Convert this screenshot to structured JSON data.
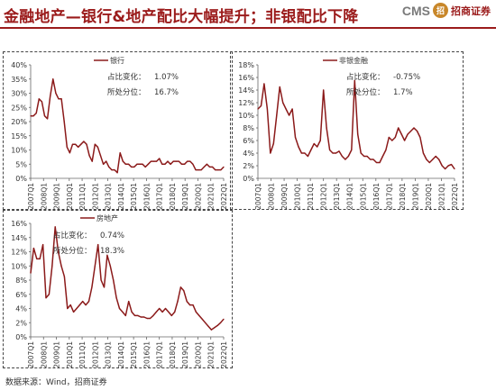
{
  "header": {
    "title": "金融地产—银行&地产配比大幅提升；非银配比下降",
    "logo_text": "CMS",
    "logo_mark": "招",
    "logo_name": "招商证券"
  },
  "footer": {
    "source": "数据来源：Wind，招商证券"
  },
  "colors": {
    "series": "#8b1a1a",
    "title": "#9b1b1b"
  },
  "chart_data": [
    {
      "type": "line",
      "title": "",
      "ylabel": "",
      "xlabel": "",
      "ylim": [
        0,
        40
      ],
      "yticks": [
        0,
        5,
        10,
        15,
        20,
        25,
        30,
        35,
        40
      ],
      "ytick_labels": [
        "0%",
        "5%",
        "10%",
        "15%",
        "20%",
        "25%",
        "30%",
        "35%",
        "40%"
      ],
      "x_tick_labels": [
        "2007Q1",
        "2008Q1",
        "2009Q1",
        "2010Q1",
        "2011Q1",
        "2012Q1",
        "2013Q1",
        "2014Q1",
        "2015Q1",
        "2016Q1",
        "2017Q1",
        "2018Q1",
        "2019Q1",
        "2020Q1",
        "2021Q1",
        "2022Q1"
      ],
      "legend": "银行",
      "legend_position": "top-left",
      "annotations": [
        {
          "label": "占比变化：",
          "value": "1.07%"
        },
        {
          "label": "所处分位：",
          "value": "16.7%"
        }
      ],
      "series": [
        {
          "name": "银行",
          "values": [
            22,
            22,
            23,
            28,
            27,
            22,
            21,
            29,
            35,
            30,
            28,
            28,
            20,
            11,
            9,
            12,
            12,
            11,
            12,
            13,
            12,
            8,
            6,
            12,
            11,
            8,
            5,
            6,
            4,
            3,
            3,
            2,
            9,
            6,
            5,
            5,
            4,
            4,
            5,
            5,
            5,
            4,
            5,
            6,
            6,
            6,
            7,
            5,
            5,
            6,
            5,
            6,
            6,
            6,
            5,
            5,
            6,
            6,
            5,
            3,
            3,
            3,
            4,
            5,
            4,
            4,
            3,
            3,
            3,
            4
          ]
        }
      ]
    },
    {
      "type": "line",
      "title": "",
      "ylabel": "",
      "xlabel": "",
      "ylim": [
        0,
        18
      ],
      "yticks": [
        0,
        2,
        4,
        6,
        8,
        10,
        12,
        14,
        16,
        18
      ],
      "ytick_labels": [
        "0%",
        "2%",
        "4%",
        "6%",
        "8%",
        "10%",
        "12%",
        "14%",
        "16%",
        "18%"
      ],
      "x_tick_labels": [
        "2007Q1",
        "2008Q1",
        "2009Q1",
        "2010Q1",
        "2011Q1",
        "2012Q1",
        "2013Q1",
        "2014Q1",
        "2015Q1",
        "2016Q1",
        "2017Q1",
        "2018Q1",
        "2019Q1",
        "2020Q1",
        "2021Q1",
        "2022Q1"
      ],
      "legend": "非银金融",
      "legend_position": "top-center",
      "annotations": [
        {
          "label": "占比变化：",
          "value": "-0.75%"
        },
        {
          "label": "所处分位：",
          "value": "1.7%"
        }
      ],
      "series": [
        {
          "name": "非银金融",
          "values": [
            11,
            11.5,
            15,
            11,
            4,
            5.5,
            10,
            14.5,
            12,
            11,
            10,
            11,
            6.5,
            5,
            4,
            4,
            3.5,
            4.5,
            5.5,
            5,
            6,
            14,
            8,
            4.5,
            4,
            4,
            4.3,
            3.5,
            3,
            3.5,
            4.5,
            15.5,
            7,
            4,
            3.5,
            3.5,
            3,
            3,
            2.5,
            2.5,
            3.5,
            4.5,
            6.5,
            6,
            6.5,
            8,
            7,
            6,
            7,
            7.5,
            8,
            7.5,
            6.5,
            4,
            3,
            2.5,
            3,
            3.5,
            3,
            2,
            1.5,
            2,
            2.2,
            1.5
          ]
        }
      ]
    },
    {
      "type": "line",
      "title": "",
      "ylabel": "",
      "xlabel": "",
      "ylim": [
        0,
        16
      ],
      "yticks": [
        0,
        2,
        4,
        6,
        8,
        10,
        12,
        14,
        16
      ],
      "ytick_labels": [
        "0%",
        "2%",
        "4%",
        "6%",
        "8%",
        "10%",
        "12%",
        "14%",
        "16%"
      ],
      "x_tick_labels": [
        "2007Q1",
        "2008Q1",
        "2009Q1",
        "2010Q1",
        "2011Q1",
        "2012Q1",
        "2013Q1",
        "2014Q1",
        "2015Q1",
        "2016Q1",
        "2017Q1",
        "2018Q1",
        "2019Q1",
        "2020Q1",
        "2021Q1",
        "2022Q1"
      ],
      "legend": "房地产",
      "legend_position": "top-left",
      "annotations": [
        {
          "label": "占比变化：",
          "value": "0.74%"
        },
        {
          "label": "所处分位：",
          "value": "18.3%"
        }
      ],
      "series": [
        {
          "name": "房地产",
          "values": [
            9,
            12.5,
            11,
            11,
            13,
            5.5,
            6,
            10,
            15.5,
            12,
            10,
            8.5,
            4,
            4.5,
            3.5,
            4,
            4.5,
            5,
            4.5,
            5,
            7,
            10,
            13,
            8,
            7,
            11.5,
            10,
            8,
            5.5,
            4,
            3.5,
            3,
            5,
            3.5,
            3,
            3,
            2.8,
            2.8,
            2.6,
            2.6,
            3,
            3.5,
            4,
            3.5,
            4,
            3.5,
            3,
            3.5,
            5,
            7,
            6.5,
            5,
            4.5,
            4.5,
            3.5,
            3,
            2.5,
            2,
            1.5,
            1,
            1.3,
            1.6,
            2,
            2.5
          ]
        }
      ]
    }
  ]
}
